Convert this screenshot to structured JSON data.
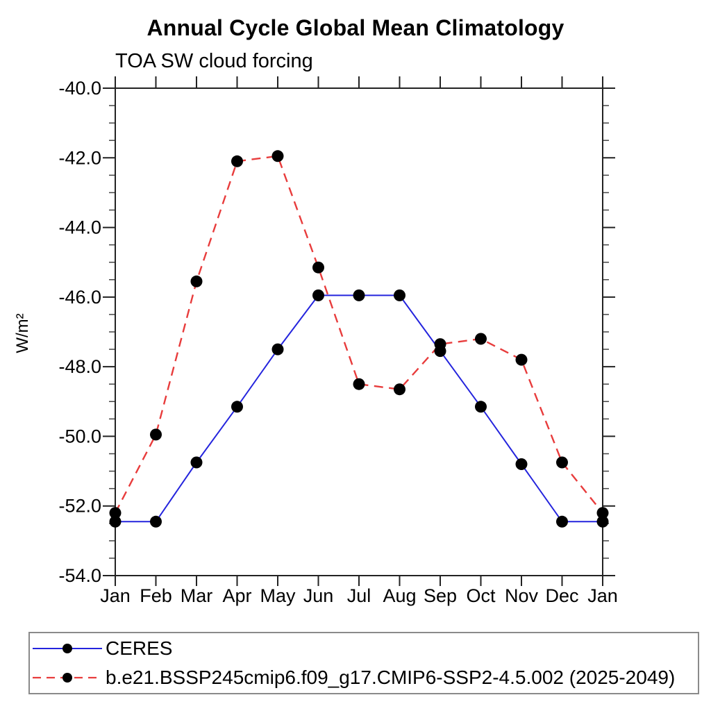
{
  "chart_data": {
    "type": "line",
    "title": "Annual Cycle Global Mean Climatology",
    "subtitle": "TOA SW cloud forcing",
    "ylabel": "W/m2",
    "ylabel_unicode": "W/m²",
    "categories": [
      "Jan",
      "Feb",
      "Mar",
      "Apr",
      "May",
      "Jun",
      "Jul",
      "Aug",
      "Sep",
      "Oct",
      "Nov",
      "Dec",
      "Jan"
    ],
    "ylim": [
      -54.0,
      -40.0
    ],
    "ytick_step": 2.0,
    "ytick_minor_step": 0.5,
    "ytick_labels": [
      "-40.0",
      "-42.0",
      "-44.0",
      "-46.0",
      "-48.0",
      "-50.0",
      "-52.0",
      "-54.0"
    ],
    "grid": false,
    "legend_position": "bottom",
    "axis_color": "#222222",
    "marker_color": "#000000",
    "series": [
      {
        "name": "CERES",
        "color": "#2424dd",
        "line_style": "solid",
        "marker": "filled-circle",
        "values": [
          -52.45,
          -52.45,
          -50.75,
          -49.15,
          -47.5,
          -45.95,
          -45.95,
          -45.95,
          -47.55,
          -49.15,
          -50.8,
          -52.45,
          -52.45
        ]
      },
      {
        "name": "b.e21.BSSP245cmip6.f09_g17.CMIP6-SSP2-4.5.002 (2025-2049)",
        "color": "#e83c3c",
        "line_style": "dashed",
        "marker": "filled-circle",
        "values": [
          -52.2,
          -49.95,
          -45.55,
          -42.1,
          -41.95,
          -45.15,
          -48.5,
          -48.65,
          -47.35,
          -47.2,
          -47.8,
          -50.75,
          -52.2
        ]
      }
    ]
  }
}
